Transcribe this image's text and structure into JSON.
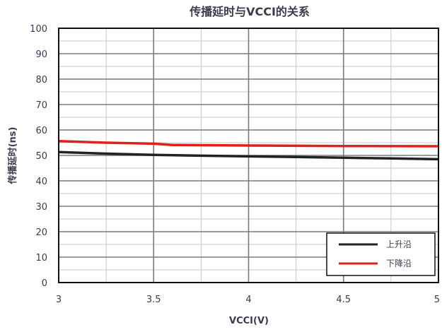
{
  "chart_data": {
    "type": "line",
    "title": "传播延时与VCCI的关系",
    "xlabel": "VCCI(V)",
    "ylabel": "传播延时(ns)",
    "xlim": [
      3,
      5
    ],
    "ylim": [
      0,
      100
    ],
    "x_ticks": [
      "3",
      "3.5",
      "4",
      "4.5",
      "5"
    ],
    "y_ticks": [
      "0",
      "10",
      "20",
      "30",
      "40",
      "50",
      "60",
      "70",
      "80",
      "90",
      "100"
    ],
    "x_tick_values": [
      3,
      3.5,
      4,
      4.5,
      5
    ],
    "y_tick_values": [
      0,
      10,
      20,
      30,
      40,
      50,
      60,
      70,
      80,
      90,
      100
    ],
    "x_minor_step": 0.25,
    "y_minor_step": 5,
    "grid": true,
    "legend_position": "bottom-right",
    "series": [
      {
        "name": "上升沿",
        "color": "#222222",
        "x": [
          3,
          3.25,
          3.5,
          3.75,
          4,
          4.25,
          4.5,
          4.75,
          5
        ],
        "y": [
          51.3,
          50.7,
          50.2,
          49.9,
          49.6,
          49.4,
          49.1,
          48.8,
          48.5
        ]
      },
      {
        "name": "下降沿",
        "color": "#e0201c",
        "x": [
          3,
          3.25,
          3.5,
          3.6,
          4,
          4.5,
          5
        ],
        "y": [
          55.6,
          55.0,
          54.6,
          54.1,
          53.9,
          53.7,
          53.6
        ]
      }
    ],
    "colors": {
      "title": "#3b3b4f",
      "axis_text": "#3b3b4f",
      "grid_major": "#7a7a7a",
      "grid_minor": "#c8c8c8",
      "frame": "#111111"
    }
  }
}
